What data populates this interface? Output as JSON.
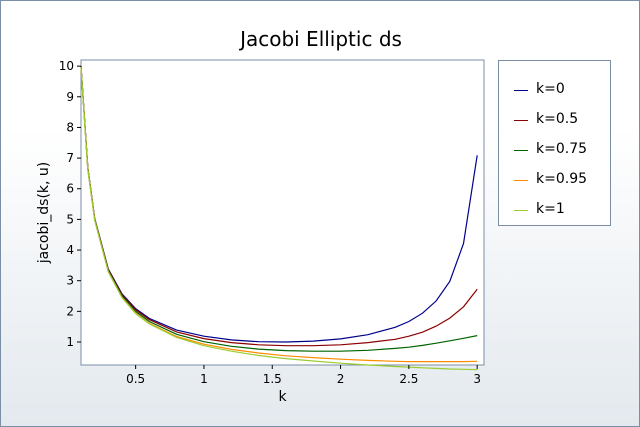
{
  "chart_data": {
    "type": "line",
    "title": "Jacobi Elliptic ds",
    "xlabel": "k",
    "ylabel": "jacobi_ds(k, u)",
    "xlim": [
      0.1,
      3.05
    ],
    "ylim": [
      0.25,
      10.2
    ],
    "x_ticks": [
      "0.5",
      "1",
      "1.5",
      "2",
      "2.5",
      "3"
    ],
    "x_tick_values": [
      0.5,
      1,
      1.5,
      2,
      2.5,
      3
    ],
    "y_ticks": [
      "1",
      "2",
      "3",
      "4",
      "5",
      "6",
      "7",
      "8",
      "9",
      "10"
    ],
    "y_tick_values": [
      1,
      2,
      3,
      4,
      5,
      6,
      7,
      8,
      9,
      10
    ],
    "grid": false,
    "legend_position": "right",
    "series": [
      {
        "name": "k=0",
        "color": "#00008b",
        "x": [
          0.1,
          0.15,
          0.2,
          0.3,
          0.4,
          0.5,
          0.6,
          0.8,
          1.0,
          1.2,
          1.4,
          1.6,
          1.8,
          2.0,
          2.2,
          2.4,
          2.5,
          2.6,
          2.7,
          2.8,
          2.9,
          3.0
        ],
        "y": [
          10.0,
          6.69,
          5.03,
          3.38,
          2.57,
          2.09,
          1.77,
          1.39,
          1.19,
          1.07,
          1.01,
          1.0,
          1.03,
          1.1,
          1.24,
          1.48,
          1.67,
          1.94,
          2.34,
          2.98,
          4.21,
          7.09
        ]
      },
      {
        "name": "k=0.5",
        "color": "#8b0000",
        "x": [
          0.1,
          0.15,
          0.2,
          0.3,
          0.4,
          0.5,
          0.6,
          0.8,
          1.0,
          1.2,
          1.4,
          1.6,
          1.8,
          2.0,
          2.2,
          2.4,
          2.5,
          2.6,
          2.7,
          2.8,
          2.9,
          3.0
        ],
        "y": [
          9.99,
          6.68,
          5.02,
          3.36,
          2.54,
          2.05,
          1.73,
          1.33,
          1.11,
          0.98,
          0.91,
          0.88,
          0.88,
          0.91,
          0.98,
          1.09,
          1.19,
          1.32,
          1.52,
          1.78,
          2.15,
          2.72
        ]
      },
      {
        "name": "k=0.75",
        "color": "#006400",
        "x": [
          0.1,
          0.15,
          0.2,
          0.3,
          0.4,
          0.5,
          0.6,
          0.8,
          1.0,
          1.2,
          1.4,
          1.6,
          1.8,
          2.0,
          2.2,
          2.4,
          2.5,
          2.6,
          2.7,
          2.8,
          2.9,
          3.0
        ],
        "y": [
          9.98,
          6.66,
          5.0,
          3.33,
          2.5,
          2.0,
          1.67,
          1.25,
          1.01,
          0.86,
          0.77,
          0.72,
          0.7,
          0.7,
          0.73,
          0.79,
          0.83,
          0.89,
          0.96,
          1.04,
          1.12,
          1.21
        ]
      },
      {
        "name": "k=0.95",
        "color": "#ff8c00",
        "x": [
          0.1,
          0.15,
          0.2,
          0.3,
          0.4,
          0.5,
          0.6,
          0.8,
          1.0,
          1.2,
          1.4,
          1.6,
          1.8,
          2.0,
          2.2,
          2.4,
          2.5,
          2.6,
          2.7,
          2.8,
          2.9,
          3.0
        ],
        "y": [
          9.97,
          6.64,
          4.98,
          3.3,
          2.46,
          1.95,
          1.61,
          1.18,
          0.93,
          0.76,
          0.64,
          0.55,
          0.49,
          0.44,
          0.4,
          0.37,
          0.36,
          0.36,
          0.36,
          0.36,
          0.36,
          0.37
        ]
      },
      {
        "name": "k=1",
        "color": "#9acd32",
        "x": [
          0.1,
          0.15,
          0.2,
          0.3,
          0.4,
          0.5,
          0.6,
          0.8,
          1.0,
          1.2,
          1.4,
          1.6,
          1.8,
          2.0,
          2.2,
          2.4,
          2.5,
          2.6,
          2.7,
          2.8,
          2.9,
          3.0
        ],
        "y": [
          9.97,
          6.63,
          4.97,
          3.29,
          2.45,
          1.93,
          1.59,
          1.15,
          0.88,
          0.7,
          0.56,
          0.46,
          0.38,
          0.31,
          0.25,
          0.2,
          0.18,
          0.16,
          0.14,
          0.12,
          0.11,
          0.1
        ]
      }
    ]
  }
}
